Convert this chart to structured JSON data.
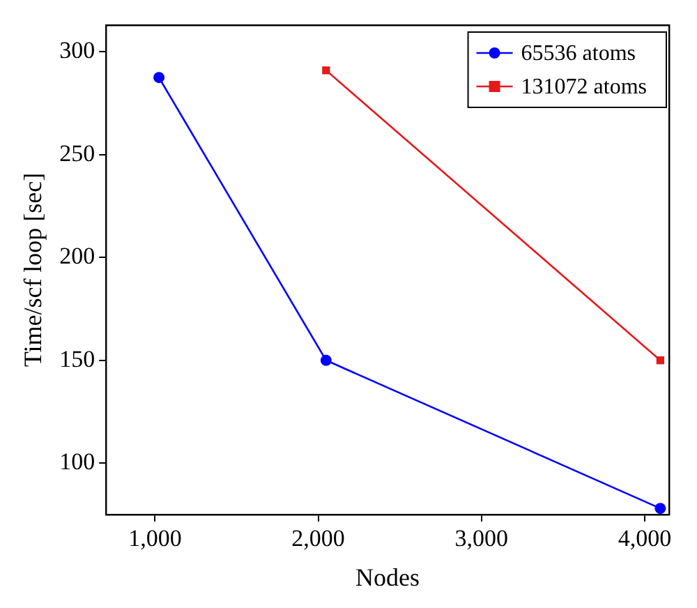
{
  "chart_data": {
    "type": "line",
    "xlabel": "Nodes",
    "ylabel": "Time/scf loop [sec]",
    "xlim": [
      700,
      4150
    ],
    "xticks": [
      {
        "value": 1000,
        "label": "1,000"
      },
      {
        "value": 2000,
        "label": "2,000"
      },
      {
        "value": 3000,
        "label": "3,000"
      },
      {
        "value": 4000,
        "label": "4,000"
      }
    ],
    "ylim": [
      75,
      313
    ],
    "yticks": [
      100,
      150,
      200,
      250,
      300
    ],
    "grid": false,
    "legend": "top right",
    "line_style": "solid",
    "series": [
      {
        "name": "65536 atoms",
        "color": "#0000ff",
        "marker": "circle",
        "x": [
          1024,
          2048,
          4096
        ],
        "values": [
          287.5,
          150,
          78
        ]
      },
      {
        "name": "131072 atoms",
        "color": "#e31a1c",
        "marker": "square",
        "x": [
          2048,
          4096
        ],
        "values": [
          291,
          150
        ]
      }
    ]
  }
}
